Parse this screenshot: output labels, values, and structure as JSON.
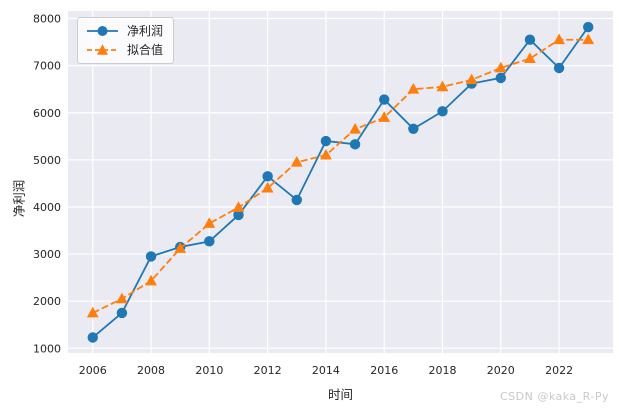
{
  "figure": {
    "watermark": "CSDN @kaka_R-Py"
  },
  "chart_data": {
    "type": "line",
    "title": "",
    "xlabel": "时间",
    "ylabel": "净利润",
    "x": [
      2006,
      2007,
      2008,
      2009,
      2010,
      2011,
      2012,
      2013,
      2014,
      2015,
      2016,
      2017,
      2018,
      2019,
      2020,
      2021,
      2022,
      2023
    ],
    "series": [
      {
        "name": "净利润",
        "color": "#1f77b4",
        "marker": "circle",
        "linestyle": "solid",
        "values": [
          1230,
          1750,
          2950,
          3150,
          3270,
          3830,
          4650,
          4150,
          5400,
          5330,
          6280,
          5660,
          6030,
          6620,
          6740,
          7550,
          6950,
          7820
        ]
      },
      {
        "name": "拟合值",
        "color": "#ff7f0e",
        "marker": "triangle",
        "linestyle": "dashed",
        "values": [
          1750,
          2050,
          2430,
          3120,
          3650,
          3990,
          4400,
          4950,
          5100,
          5650,
          5900,
          6500,
          6550,
          6700,
          6950,
          7150,
          7550,
          7550
        ]
      }
    ],
    "xticks": [
      2006,
      2008,
      2010,
      2012,
      2014,
      2016,
      2018,
      2020,
      2022
    ],
    "yticks": [
      1000,
      2000,
      3000,
      4000,
      5000,
      6000,
      7000,
      8000
    ],
    "xlim": [
      2005.15,
      2023.85
    ],
    "ylim": [
      900,
      8160
    ],
    "grid": true,
    "legend_position": "upper left",
    "plot_bg": "#eaeaf2",
    "grid_color": "#ffffff",
    "text_color": "#262626",
    "tick_fontsize": 11
  }
}
